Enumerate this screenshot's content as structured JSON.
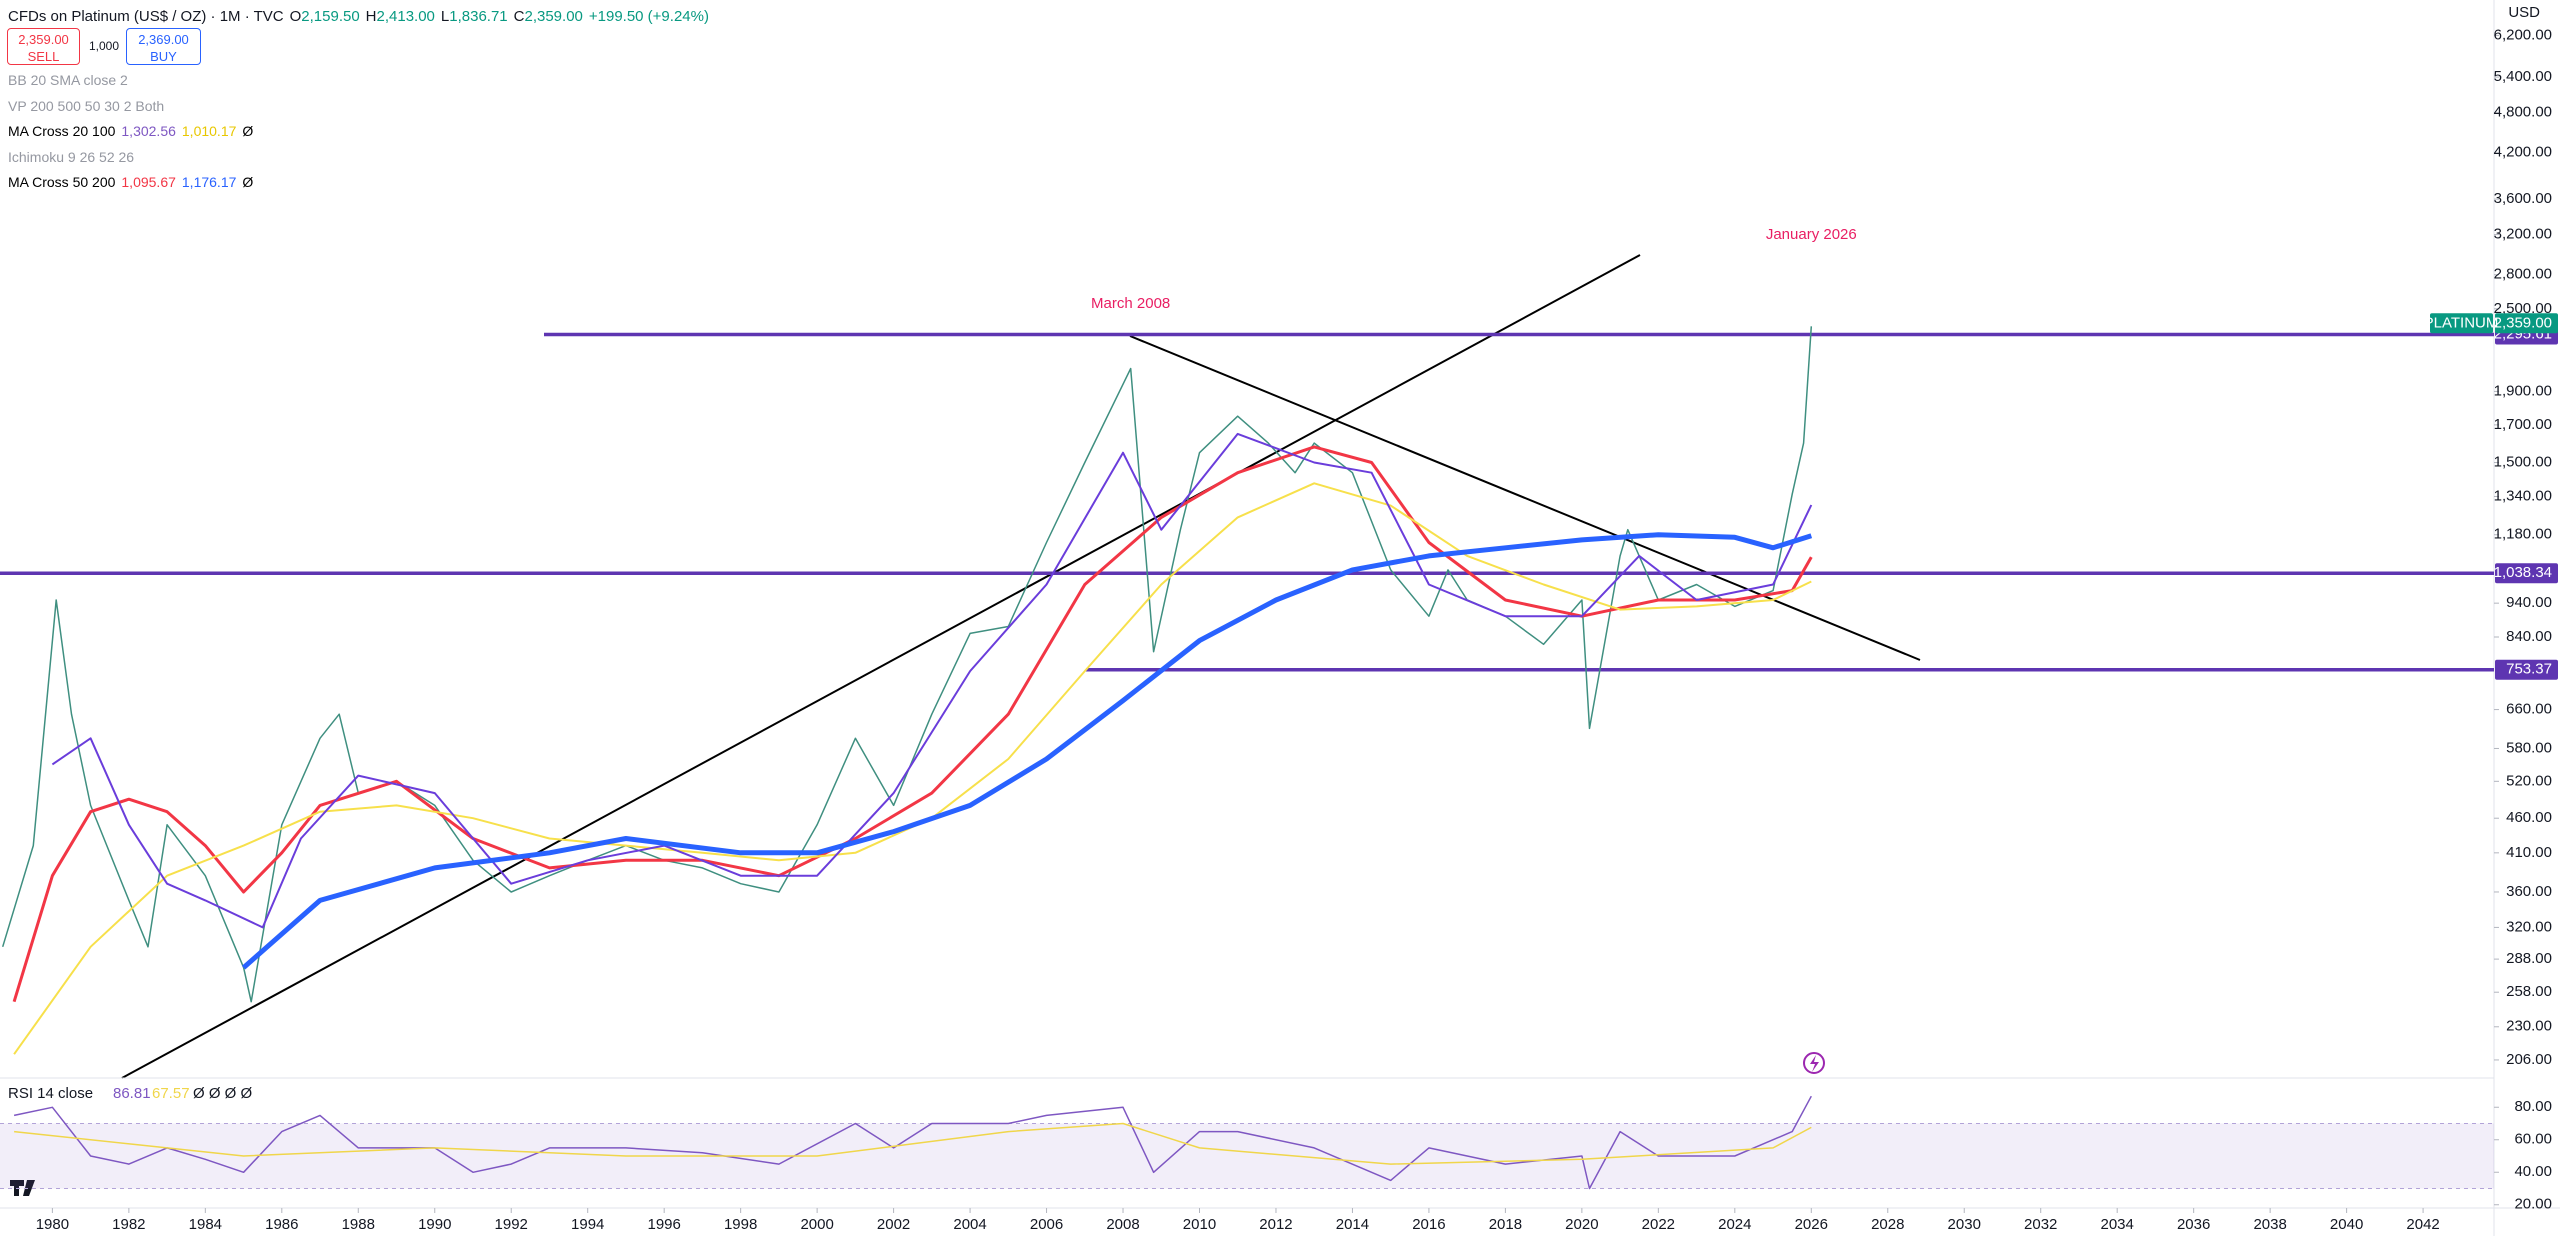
{
  "header": {
    "symbol": "CFDs on Platinum (US$ / OZ) · 1M · TVC",
    "ohlc": [
      {
        "key": "O",
        "value": "2,159.50"
      },
      {
        "key": "H",
        "value": "2,413.00"
      },
      {
        "key": "L",
        "value": "1,836.71"
      },
      {
        "key": "C",
        "value": "2,359.00"
      }
    ],
    "change": "+199.50 (+9.24%)",
    "sell": {
      "price": "2,359.00",
      "label": "SELL"
    },
    "quantity": "1,000",
    "buy": {
      "price": "2,369.00",
      "label": "BUY"
    },
    "indicators": [
      {
        "name": "BB 20 SMA close 2"
      },
      {
        "name": "VP 200 500 50 30 2 Both"
      },
      {
        "name": "MA Cross 20 100",
        "values": [
          {
            "text": "1,302.56",
            "color": "#7e57c2"
          },
          {
            "text": "1,010.17",
            "color": "#e8c700"
          }
        ],
        "suffix": "Ø"
      },
      {
        "name": "Ichimoku 9 26 52 26"
      },
      {
        "name": "MA Cross 50 200",
        "values": [
          {
            "text": "1,095.67",
            "color": "#f23645"
          },
          {
            "text": "1,176.17",
            "color": "#2962ff"
          }
        ],
        "suffix": "Ø"
      }
    ],
    "currency": "USD"
  },
  "chart_data": [
    {
      "type": "line",
      "log_scale": true,
      "xlim": [
        1978.63,
        2043.75
      ],
      "ylim": [
        194,
        6977
      ],
      "xticks": [
        1980,
        1982,
        1984,
        1986,
        1988,
        1990,
        1992,
        1994,
        1996,
        1998,
        2000,
        2002,
        2004,
        2006,
        2008,
        2010,
        2012,
        2014,
        2016,
        2018,
        2020,
        2022,
        2024,
        2026,
        2028,
        2030,
        2032,
        2034,
        2036,
        2038,
        2040,
        2042
      ],
      "yticks": [
        {
          "value": 6200,
          "label": "6,200.00"
        },
        {
          "value": 5400,
          "label": "5,400.00"
        },
        {
          "value": 4800,
          "label": "4,800.00"
        },
        {
          "value": 4200,
          "label": "4,200.00"
        },
        {
          "value": 3600,
          "label": "3,600.00"
        },
        {
          "value": 3200,
          "label": "3,200.00"
        },
        {
          "value": 2800,
          "label": "2,800.00"
        },
        {
          "value": 2500,
          "label": "2,500.00"
        },
        {
          "value": 1900,
          "label": "1,900.00"
        },
        {
          "value": 1700,
          "label": "1,700.00"
        },
        {
          "value": 1500,
          "label": "1,500.00"
        },
        {
          "value": 1340,
          "label": "1,340.00"
        },
        {
          "value": 1180,
          "label": "1,180.00"
        },
        {
          "value": 940,
          "label": "940.00"
        },
        {
          "value": 840,
          "label": "840.00"
        },
        {
          "value": 660,
          "label": "660.00"
        },
        {
          "value": 580,
          "label": "580.00"
        },
        {
          "value": 520,
          "label": "520.00"
        },
        {
          "value": 460,
          "label": "460.00"
        },
        {
          "value": 410,
          "label": "410.00"
        },
        {
          "value": 360,
          "label": "360.00"
        },
        {
          "value": 320,
          "label": "320.00"
        },
        {
          "value": 288,
          "label": "288.00"
        },
        {
          "value": 258,
          "label": "258.00"
        },
        {
          "value": 230,
          "label": "230.00"
        },
        {
          "value": 206,
          "label": "206.00"
        }
      ],
      "series": [
        {
          "name": "PLATINUM",
          "color": "#3f8f80",
          "width": 1.5,
          "x": [
            1978.7,
            1979.5,
            1980.1,
            1980.5,
            1981,
            1982,
            1982.5,
            1983,
            1984,
            1985,
            1985.2,
            1986,
            1987,
            1987.5,
            1988,
            1989,
            1990,
            1991,
            1992,
            1993,
            1994,
            1995,
            1996,
            1997,
            1998,
            1999,
            2000,
            2001,
            2002,
            2003,
            2004,
            2005,
            2006,
            2007,
            2008.2,
            2008.8,
            2009.5,
            2010,
            2011,
            2011.8,
            2012.5,
            2013,
            2014,
            2015,
            2016,
            2016.5,
            2017,
            2018,
            2019,
            2020,
            2020.2,
            2021,
            2021.2,
            2022,
            2023,
            2024,
            2025,
            2025.5,
            2025.8,
            2026
          ],
          "values": [
            300,
            420,
            950,
            650,
            480,
            350,
            300,
            450,
            380,
            280,
            250,
            450,
            600,
            650,
            500,
            520,
            480,
            400,
            360,
            380,
            400,
            420,
            400,
            390,
            370,
            360,
            450,
            600,
            480,
            650,
            850,
            870,
            1150,
            1500,
            2050,
            800,
            1200,
            1550,
            1750,
            1600,
            1450,
            1600,
            1450,
            1050,
            900,
            1050,
            950,
            900,
            820,
            950,
            620,
            1100,
            1200,
            950,
            1000,
            930,
            980,
            1350,
            1600,
            2359
          ],
          "value_labels": [
            null,
            null,
            null,
            null,
            null,
            null,
            null,
            null,
            null,
            null,
            null,
            null,
            null,
            null,
            null,
            null,
            null,
            null,
            null,
            null,
            null,
            null,
            null,
            null,
            null,
            null,
            null,
            null,
            null,
            null,
            null,
            null,
            null,
            null,
            null,
            null,
            null,
            null,
            null,
            null,
            null,
            null,
            null,
            null,
            null,
            null,
            null,
            null,
            null,
            null,
            null,
            null,
            null,
            null,
            null,
            null,
            null,
            null,
            null,
            "2,359.00"
          ]
        },
        {
          "color": "#f23645",
          "width": 3,
          "x": [
            1979,
            1980,
            1981,
            1982,
            1983,
            1984,
            1985,
            1986,
            1987,
            1989,
            1991,
            1993,
            1995,
            1997,
            1999,
            2001,
            2003,
            2005,
            2007,
            2009,
            2011,
            2013,
            2014.5,
            2016,
            2018,
            2020,
            2022,
            2024,
            2025.5,
            2026
          ],
          "values": [
            250,
            380,
            470,
            490,
            470,
            420,
            360,
            410,
            480,
            520,
            430,
            390,
            400,
            400,
            380,
            430,
            500,
            650,
            1000,
            1250,
            1450,
            1580,
            1500,
            1150,
            950,
            900,
            950,
            950,
            980,
            1095.67
          ]
        },
        {
          "color": "#f7e04b",
          "width": 2,
          "x": [
            1979,
            1981,
            1983,
            1985,
            1987,
            1989,
            1991,
            1993,
            1995,
            1997,
            1999,
            2001,
            2003,
            2005,
            2007,
            2009,
            2011,
            2013,
            2015,
            2017,
            2019,
            2021,
            2023,
            2025,
            2026
          ],
          "values": [
            210,
            300,
            380,
            420,
            470,
            480,
            460,
            430,
            420,
            410,
            400,
            410,
            460,
            560,
            750,
            1000,
            1250,
            1400,
            1300,
            1100,
            1000,
            920,
            930,
            950,
            1010.17
          ]
        },
        {
          "color": "#6a3ddb",
          "width": 2,
          "x": [
            1980,
            1981,
            1982,
            1983,
            1984,
            1985.5,
            1986.5,
            1988,
            1990,
            1992,
            1994,
            1996,
            1998,
            2000,
            2002,
            2004,
            2006,
            2008,
            2009,
            2011,
            2013,
            2014.5,
            2016,
            2018,
            2020,
            2021.5,
            2023,
            2025,
            2026
          ],
          "values": [
            550,
            600,
            450,
            370,
            350,
            320,
            430,
            530,
            500,
            370,
            400,
            420,
            380,
            380,
            500,
            750,
            1000,
            1550,
            1200,
            1650,
            1500,
            1450,
            1000,
            900,
            900,
            1100,
            950,
            1000,
            1302.56
          ]
        },
        {
          "color": "#2962ff",
          "width": 5,
          "x": [
            1985,
            1987,
            1990,
            1993,
            1995,
            1998,
            2000,
            2002,
            2004,
            2006,
            2008,
            2010,
            2012,
            2014,
            2016,
            2018,
            2020,
            2022,
            2024,
            2025,
            2026
          ],
          "values": [
            280,
            350,
            390,
            410,
            430,
            410,
            410,
            440,
            480,
            560,
            680,
            830,
            950,
            1050,
            1100,
            1130,
            1160,
            1180,
            1170,
            1130,
            1176.17
          ]
        }
      ],
      "levels": [
        {
          "value": 2295.61,
          "label": "2,295.61",
          "color": "#5e35b1"
        },
        {
          "value": 1038.34,
          "label": "1,038.34",
          "color": "#5e35b1"
        },
        {
          "value": 753.37,
          "label": "753.37",
          "color": "#5e35b1"
        }
      ],
      "annotations": [
        {
          "text": "March 2008",
          "x": 2008.2,
          "color": "#e91e63"
        },
        {
          "text": "January 2026",
          "x": 2026,
          "color": "#e91e63"
        }
      ]
    },
    {
      "type": "line",
      "title": "RSI 14 close",
      "suffix": "Ø Ø Ø Ø",
      "ylim": [
        18,
        98
      ],
      "yticks": [
        {
          "value": 80,
          "label": "80.00"
        },
        {
          "value": 60,
          "label": "60.00"
        },
        {
          "value": 40,
          "label": "40.00"
        },
        {
          "value": 20,
          "label": "20.00"
        }
      ],
      "band": [
        30,
        70
      ],
      "series": [
        {
          "color": "#7e57c2",
          "x": [
            1979,
            1980,
            1981,
            1982,
            1983,
            1984,
            1985,
            1986,
            1987,
            1988,
            1990,
            1991,
            1992,
            1993,
            1995,
            1997,
            1999,
            2001,
            2002,
            2003,
            2005,
            2006,
            2008,
            2008.8,
            2010,
            2011,
            2013,
            2015,
            2016,
            2018,
            2020,
            2020.2,
            2021,
            2022,
            2024,
            2025.5,
            2026
          ],
          "values": [
            75,
            80,
            50,
            45,
            55,
            48,
            40,
            65,
            75,
            55,
            55,
            40,
            45,
            55,
            55,
            52,
            45,
            70,
            55,
            70,
            70,
            75,
            80,
            40,
            65,
            65,
            55,
            35,
            55,
            45,
            50,
            30,
            65,
            50,
            50,
            65,
            86.81
          ]
        },
        {
          "color": "#f0d64a",
          "x": [
            1979,
            1985,
            1990,
            1995,
            2000,
            2005,
            2008,
            2010,
            2015,
            2020,
            2025,
            2026
          ],
          "values": [
            65,
            50,
            55,
            50,
            50,
            65,
            70,
            55,
            45,
            48,
            55,
            67.57
          ]
        }
      ]
    }
  ]
}
